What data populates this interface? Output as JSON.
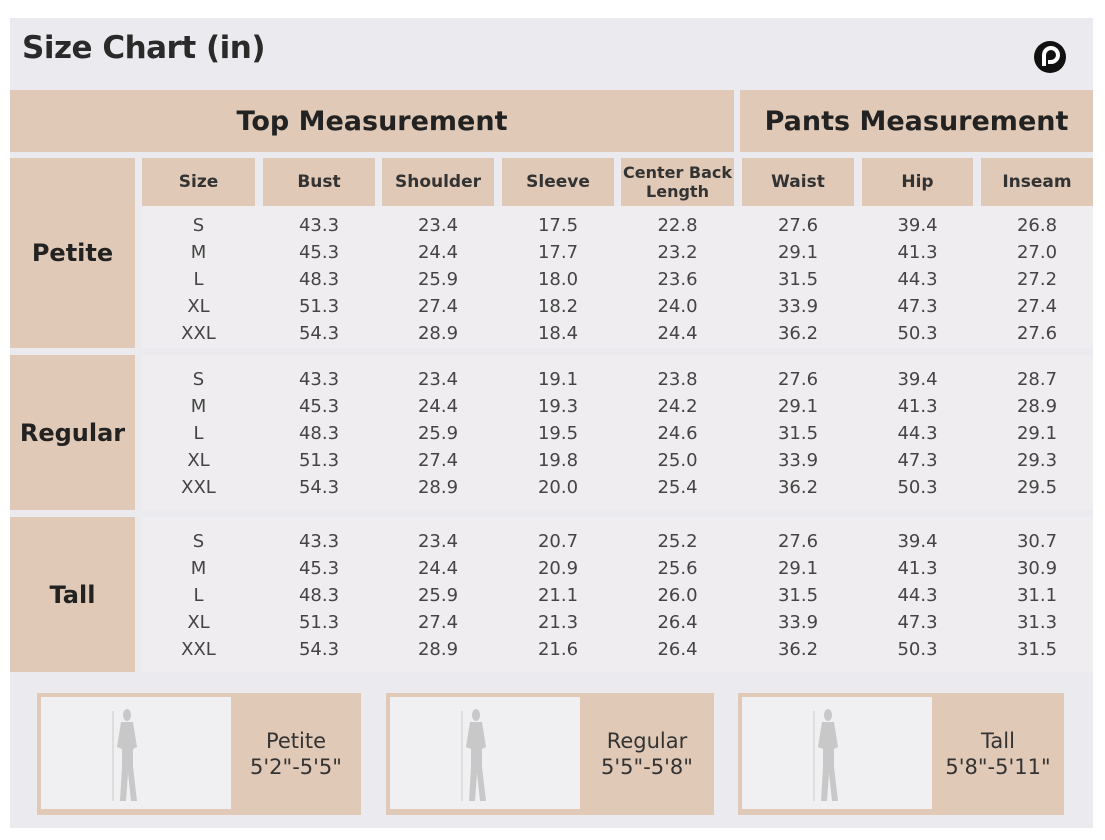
{
  "title": "Size Chart (in)",
  "logo": "brand-logo-icon",
  "sections": {
    "top": "Top Measurement",
    "pants": "Pants Measurement"
  },
  "columns": [
    "Size",
    "Bust",
    "Shoulder",
    "Sleeve",
    "Center Back Length",
    "Waist",
    "Hip",
    "Inseam"
  ],
  "groups": [
    {
      "name": "Petite",
      "rows": [
        [
          "S",
          "43.3",
          "23.4",
          "17.5",
          "22.8",
          "27.6",
          "39.4",
          "26.8"
        ],
        [
          "M",
          "45.3",
          "24.4",
          "17.7",
          "23.2",
          "29.1",
          "41.3",
          "27.0"
        ],
        [
          "L",
          "48.3",
          "25.9",
          "18.0",
          "23.6",
          "31.5",
          "44.3",
          "27.2"
        ],
        [
          "XL",
          "51.3",
          "27.4",
          "18.2",
          "24.0",
          "33.9",
          "47.3",
          "27.4"
        ],
        [
          "XXL",
          "54.3",
          "28.9",
          "18.4",
          "24.4",
          "36.2",
          "50.3",
          "27.6"
        ]
      ]
    },
    {
      "name": "Regular",
      "rows": [
        [
          "S",
          "43.3",
          "23.4",
          "19.1",
          "23.8",
          "27.6",
          "39.4",
          "28.7"
        ],
        [
          "M",
          "45.3",
          "24.4",
          "19.3",
          "24.2",
          "29.1",
          "41.3",
          "28.9"
        ],
        [
          "L",
          "48.3",
          "25.9",
          "19.5",
          "24.6",
          "31.5",
          "44.3",
          "29.1"
        ],
        [
          "XL",
          "51.3",
          "27.4",
          "19.8",
          "25.0",
          "33.9",
          "47.3",
          "29.3"
        ],
        [
          "XXL",
          "54.3",
          "28.9",
          "20.0",
          "25.4",
          "36.2",
          "50.3",
          "29.5"
        ]
      ]
    },
    {
      "name": "Tall",
      "rows": [
        [
          "S",
          "43.3",
          "23.4",
          "20.7",
          "25.2",
          "27.6",
          "39.4",
          "30.7"
        ],
        [
          "M",
          "45.3",
          "24.4",
          "20.9",
          "25.6",
          "29.1",
          "41.3",
          "30.9"
        ],
        [
          "L",
          "48.3",
          "25.9",
          "21.1",
          "26.0",
          "31.5",
          "44.3",
          "31.1"
        ],
        [
          "XL",
          "51.3",
          "27.4",
          "21.3",
          "26.4",
          "33.9",
          "47.3",
          "31.3"
        ],
        [
          "XXL",
          "54.3",
          "28.9",
          "21.6",
          "26.4",
          "36.2",
          "50.3",
          "31.5"
        ]
      ]
    }
  ],
  "cards": [
    {
      "name": "Petite",
      "height": "5'2\"-5'5\""
    },
    {
      "name": "Regular",
      "height": "5'5\"-5'8\""
    },
    {
      "name": "Tall",
      "height": "5'8\"-5'11\""
    }
  ],
  "colors": {
    "accent": "#e0c9b6",
    "background": "#ebeaef"
  }
}
